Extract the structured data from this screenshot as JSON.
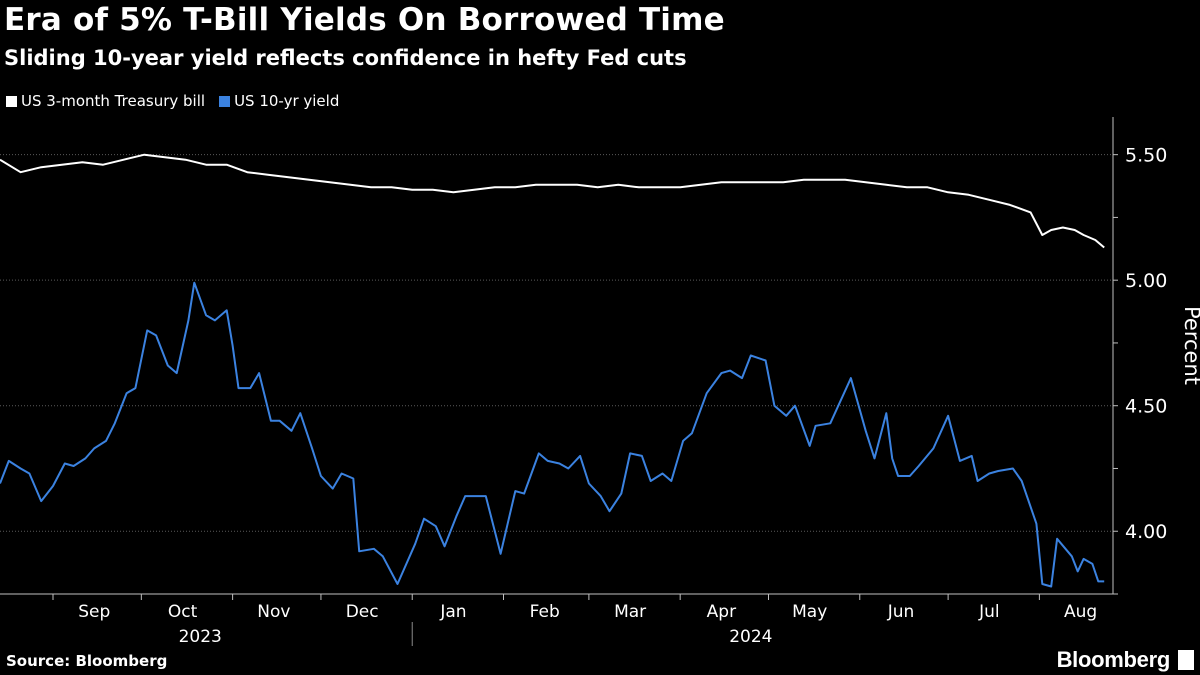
{
  "title": "Era of 5% T-Bill Yields On Borrowed Time",
  "subtitle": "Sliding 10-year yield reflects confidence in hefty Fed cuts",
  "source": "Source: Bloomberg",
  "brand": "Bloomberg",
  "legend": [
    {
      "label": "US 3-month Treasury bill",
      "color": "#ffffff"
    },
    {
      "label": "US 10-yr yield",
      "color": "#3b82e0"
    }
  ],
  "chart_data": {
    "type": "line",
    "title": "Era of 5% T-Bill Yields On Borrowed Time",
    "subtitle": "Sliding 10-year yield reflects confidence in hefty Fed cuts",
    "ylabel": "Percent",
    "xlabel": "",
    "ylim": [
      3.75,
      5.65
    ],
    "yticks": [
      4.0,
      4.5,
      5.0,
      5.5
    ],
    "ytick_labels": [
      "4.00",
      "4.50",
      "5.00",
      "5.50"
    ],
    "x_start": "2023-08-14",
    "x_end": "2024-08-26",
    "month_labels": [
      {
        "label": "Sep",
        "date": "2023-09-15"
      },
      {
        "label": "Oct",
        "date": "2023-10-15"
      },
      {
        "label": "Nov",
        "date": "2023-11-15"
      },
      {
        "label": "Dec",
        "date": "2023-12-15"
      },
      {
        "label": "Jan",
        "date": "2024-01-15"
      },
      {
        "label": "Feb",
        "date": "2024-02-15"
      },
      {
        "label": "Mar",
        "date": "2024-03-15"
      },
      {
        "label": "Apr",
        "date": "2024-04-15"
      },
      {
        "label": "May",
        "date": "2024-05-15"
      },
      {
        "label": "Jun",
        "date": "2024-06-15"
      },
      {
        "label": "Jul",
        "date": "2024-07-15"
      },
      {
        "label": "Aug",
        "date": "2024-08-15"
      }
    ],
    "month_ticks": [
      "2023-09-01",
      "2023-10-01",
      "2023-11-01",
      "2023-12-01",
      "2024-01-01",
      "2024-02-01",
      "2024-03-01",
      "2024-04-01",
      "2024-05-01",
      "2024-06-01",
      "2024-07-01",
      "2024-08-01"
    ],
    "year_labels": [
      {
        "label": "2023",
        "date": "2023-10-21"
      },
      {
        "label": "2024",
        "date": "2024-04-25"
      }
    ],
    "year_divider": "2024-01-01",
    "grid": true,
    "legend_position": "top-left",
    "series": [
      {
        "name": "US 3-month Treasury bill",
        "color": "#ffffff",
        "points": [
          [
            "2023-08-14",
            5.48
          ],
          [
            "2023-08-21",
            5.43
          ],
          [
            "2023-08-28",
            5.45
          ],
          [
            "2023-09-04",
            5.46
          ],
          [
            "2023-09-11",
            5.47
          ],
          [
            "2023-09-18",
            5.46
          ],
          [
            "2023-09-25",
            5.48
          ],
          [
            "2023-10-02",
            5.5
          ],
          [
            "2023-10-09",
            5.49
          ],
          [
            "2023-10-16",
            5.48
          ],
          [
            "2023-10-23",
            5.46
          ],
          [
            "2023-10-30",
            5.46
          ],
          [
            "2023-11-06",
            5.43
          ],
          [
            "2023-11-13",
            5.42
          ],
          [
            "2023-11-20",
            5.41
          ],
          [
            "2023-11-27",
            5.4
          ],
          [
            "2023-12-04",
            5.39
          ],
          [
            "2023-12-11",
            5.38
          ],
          [
            "2023-12-18",
            5.37
          ],
          [
            "2023-12-25",
            5.37
          ],
          [
            "2024-01-01",
            5.36
          ],
          [
            "2024-01-08",
            5.36
          ],
          [
            "2024-01-15",
            5.35
          ],
          [
            "2024-01-22",
            5.36
          ],
          [
            "2024-01-29",
            5.37
          ],
          [
            "2024-02-05",
            5.37
          ],
          [
            "2024-02-12",
            5.38
          ],
          [
            "2024-02-19",
            5.38
          ],
          [
            "2024-02-26",
            5.38
          ],
          [
            "2024-03-04",
            5.37
          ],
          [
            "2024-03-11",
            5.38
          ],
          [
            "2024-03-18",
            5.37
          ],
          [
            "2024-03-25",
            5.37
          ],
          [
            "2024-04-01",
            5.37
          ],
          [
            "2024-04-08",
            5.38
          ],
          [
            "2024-04-15",
            5.39
          ],
          [
            "2024-04-22",
            5.39
          ],
          [
            "2024-04-29",
            5.39
          ],
          [
            "2024-05-06",
            5.39
          ],
          [
            "2024-05-13",
            5.4
          ],
          [
            "2024-05-20",
            5.4
          ],
          [
            "2024-05-27",
            5.4
          ],
          [
            "2024-06-03",
            5.39
          ],
          [
            "2024-06-10",
            5.38
          ],
          [
            "2024-06-17",
            5.37
          ],
          [
            "2024-06-24",
            5.37
          ],
          [
            "2024-07-01",
            5.35
          ],
          [
            "2024-07-08",
            5.34
          ],
          [
            "2024-07-15",
            5.32
          ],
          [
            "2024-07-22",
            5.3
          ],
          [
            "2024-07-29",
            5.27
          ],
          [
            "2024-08-02",
            5.18
          ],
          [
            "2024-08-05",
            5.2
          ],
          [
            "2024-08-09",
            5.21
          ],
          [
            "2024-08-13",
            5.2
          ],
          [
            "2024-08-16",
            5.18
          ],
          [
            "2024-08-20",
            5.16
          ],
          [
            "2024-08-23",
            5.13
          ]
        ]
      },
      {
        "name": "US 10-yr yield",
        "color": "#3b82e0",
        "points": [
          [
            "2023-08-14",
            4.19
          ],
          [
            "2023-08-17",
            4.28
          ],
          [
            "2023-08-21",
            4.25
          ],
          [
            "2023-08-24",
            4.23
          ],
          [
            "2023-08-28",
            4.12
          ],
          [
            "2023-09-01",
            4.18
          ],
          [
            "2023-09-05",
            4.27
          ],
          [
            "2023-09-08",
            4.26
          ],
          [
            "2023-09-12",
            4.29
          ],
          [
            "2023-09-15",
            4.33
          ],
          [
            "2023-09-19",
            4.36
          ],
          [
            "2023-09-22",
            4.43
          ],
          [
            "2023-09-26",
            4.55
          ],
          [
            "2023-09-29",
            4.57
          ],
          [
            "2023-10-03",
            4.8
          ],
          [
            "2023-10-06",
            4.78
          ],
          [
            "2023-10-10",
            4.66
          ],
          [
            "2023-10-13",
            4.63
          ],
          [
            "2023-10-17",
            4.84
          ],
          [
            "2023-10-19",
            4.99
          ],
          [
            "2023-10-23",
            4.86
          ],
          [
            "2023-10-26",
            4.84
          ],
          [
            "2023-10-30",
            4.88
          ],
          [
            "2023-11-01",
            4.74
          ],
          [
            "2023-11-03",
            4.57
          ],
          [
            "2023-11-07",
            4.57
          ],
          [
            "2023-11-10",
            4.63
          ],
          [
            "2023-11-14",
            4.44
          ],
          [
            "2023-11-17",
            4.44
          ],
          [
            "2023-11-21",
            4.4
          ],
          [
            "2023-11-24",
            4.47
          ],
          [
            "2023-11-28",
            4.33
          ],
          [
            "2023-12-01",
            4.22
          ],
          [
            "2023-12-05",
            4.17
          ],
          [
            "2023-12-08",
            4.23
          ],
          [
            "2023-12-12",
            4.21
          ],
          [
            "2023-12-14",
            3.92
          ],
          [
            "2023-12-19",
            3.93
          ],
          [
            "2023-12-22",
            3.9
          ],
          [
            "2023-12-27",
            3.79
          ],
          [
            "2024-01-02",
            3.95
          ],
          [
            "2024-01-05",
            4.05
          ],
          [
            "2024-01-09",
            4.02
          ],
          [
            "2024-01-12",
            3.94
          ],
          [
            "2024-01-16",
            4.06
          ],
          [
            "2024-01-19",
            4.14
          ],
          [
            "2024-01-23",
            4.14
          ],
          [
            "2024-01-26",
            4.14
          ],
          [
            "2024-01-31",
            3.91
          ],
          [
            "2024-02-05",
            4.16
          ],
          [
            "2024-02-08",
            4.15
          ],
          [
            "2024-02-13",
            4.31
          ],
          [
            "2024-02-16",
            4.28
          ],
          [
            "2024-02-20",
            4.27
          ],
          [
            "2024-02-23",
            4.25
          ],
          [
            "2024-02-27",
            4.3
          ],
          [
            "2024-03-01",
            4.19
          ],
          [
            "2024-03-05",
            4.14
          ],
          [
            "2024-03-08",
            4.08
          ],
          [
            "2024-03-12",
            4.15
          ],
          [
            "2024-03-15",
            4.31
          ],
          [
            "2024-03-19",
            4.3
          ],
          [
            "2024-03-22",
            4.2
          ],
          [
            "2024-03-26",
            4.23
          ],
          [
            "2024-03-29",
            4.2
          ],
          [
            "2024-04-02",
            4.36
          ],
          [
            "2024-04-05",
            4.39
          ],
          [
            "2024-04-10",
            4.55
          ],
          [
            "2024-04-15",
            4.63
          ],
          [
            "2024-04-18",
            4.64
          ],
          [
            "2024-04-22",
            4.61
          ],
          [
            "2024-04-25",
            4.7
          ],
          [
            "2024-04-30",
            4.68
          ],
          [
            "2024-05-03",
            4.5
          ],
          [
            "2024-05-07",
            4.46
          ],
          [
            "2024-05-10",
            4.5
          ],
          [
            "2024-05-15",
            4.34
          ],
          [
            "2024-05-17",
            4.42
          ],
          [
            "2024-05-22",
            4.43
          ],
          [
            "2024-05-29",
            4.61
          ],
          [
            "2024-06-03",
            4.4
          ],
          [
            "2024-06-06",
            4.29
          ],
          [
            "2024-06-10",
            4.47
          ],
          [
            "2024-06-12",
            4.29
          ],
          [
            "2024-06-14",
            4.22
          ],
          [
            "2024-06-18",
            4.22
          ],
          [
            "2024-06-21",
            4.26
          ],
          [
            "2024-06-26",
            4.33
          ],
          [
            "2024-07-01",
            4.46
          ],
          [
            "2024-07-05",
            4.28
          ],
          [
            "2024-07-09",
            4.3
          ],
          [
            "2024-07-11",
            4.2
          ],
          [
            "2024-07-15",
            4.23
          ],
          [
            "2024-07-18",
            4.24
          ],
          [
            "2024-07-23",
            4.25
          ],
          [
            "2024-07-26",
            4.2
          ],
          [
            "2024-07-31",
            4.03
          ],
          [
            "2024-08-02",
            3.79
          ],
          [
            "2024-08-05",
            3.78
          ],
          [
            "2024-08-07",
            3.97
          ],
          [
            "2024-08-12",
            3.9
          ],
          [
            "2024-08-14",
            3.84
          ],
          [
            "2024-08-16",
            3.89
          ],
          [
            "2024-08-19",
            3.87
          ],
          [
            "2024-08-21",
            3.8
          ],
          [
            "2024-08-23",
            3.8
          ]
        ]
      }
    ]
  }
}
